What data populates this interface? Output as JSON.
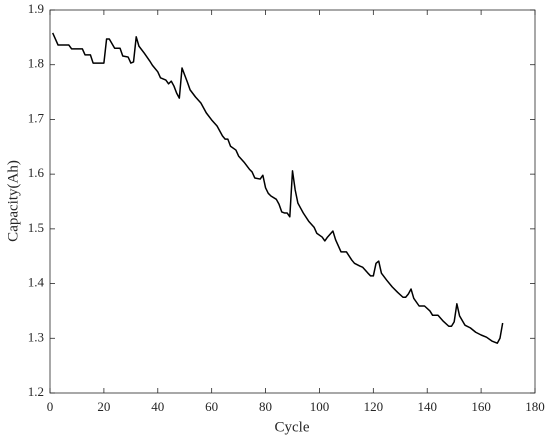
{
  "chart_data": {
    "type": "line",
    "x_label": "Cycle",
    "y_label": "Capacity(Ah)",
    "x": [
      1,
      3,
      7,
      8,
      12,
      13,
      15,
      16,
      20,
      21,
      22,
      24,
      26,
      27,
      29,
      30,
      31,
      32,
      33,
      35,
      37,
      38,
      40,
      41,
      43,
      44,
      45,
      46,
      47,
      48,
      49,
      50,
      51,
      52,
      54,
      56,
      58,
      60,
      62,
      64,
      65,
      66,
      67,
      69,
      70,
      72,
      74,
      75,
      76,
      78,
      79,
      80,
      81,
      82,
      84,
      85,
      86,
      87,
      88,
      89,
      90,
      91,
      92,
      93,
      94,
      96,
      98,
      99,
      101,
      102,
      103,
      105,
      106,
      108,
      110,
      112,
      113,
      115,
      116,
      118,
      119,
      120,
      121,
      122,
      123,
      125,
      127,
      129,
      131,
      132,
      133,
      134,
      135,
      137,
      139,
      141,
      142,
      144,
      146,
      148,
      149,
      150,
      151,
      152,
      154,
      156,
      158,
      160,
      162,
      164,
      166,
      167,
      168
    ],
    "series": [
      {
        "name": "Capacity",
        "color": "#000000",
        "values": [
          1.858,
          1.836,
          1.836,
          1.829,
          1.829,
          1.818,
          1.818,
          1.803,
          1.803,
          1.847,
          1.847,
          1.83,
          1.83,
          1.816,
          1.814,
          1.803,
          1.805,
          1.851,
          1.834,
          1.821,
          1.807,
          1.799,
          1.787,
          1.776,
          1.772,
          1.765,
          1.77,
          1.761,
          1.748,
          1.739,
          1.794,
          1.781,
          1.768,
          1.754,
          1.741,
          1.73,
          1.712,
          1.699,
          1.688,
          1.67,
          1.664,
          1.664,
          1.651,
          1.644,
          1.633,
          1.622,
          1.609,
          1.604,
          1.593,
          1.591,
          1.598,
          1.575,
          1.565,
          1.56,
          1.554,
          1.545,
          1.531,
          1.529,
          1.529,
          1.522,
          1.606,
          1.571,
          1.547,
          1.538,
          1.529,
          1.514,
          1.503,
          1.492,
          1.485,
          1.478,
          1.485,
          1.496,
          1.48,
          1.458,
          1.458,
          1.443,
          1.437,
          1.432,
          1.43,
          1.419,
          1.414,
          1.414,
          1.437,
          1.441,
          1.419,
          1.406,
          1.394,
          1.384,
          1.375,
          1.375,
          1.381,
          1.39,
          1.373,
          1.359,
          1.359,
          1.35,
          1.342,
          1.342,
          1.331,
          1.322,
          1.322,
          1.33,
          1.363,
          1.341,
          1.324,
          1.319,
          1.311,
          1.306,
          1.302,
          1.295,
          1.291,
          1.3,
          1.328
        ]
      }
    ],
    "xlim": [
      0,
      180
    ],
    "xticks": [
      0,
      20,
      40,
      60,
      80,
      100,
      120,
      140,
      160,
      180
    ],
    "ylim": [
      1.2,
      1.9
    ],
    "yticks": [
      1.2,
      1.3,
      1.4,
      1.5,
      1.6,
      1.7,
      1.8,
      1.9
    ]
  }
}
